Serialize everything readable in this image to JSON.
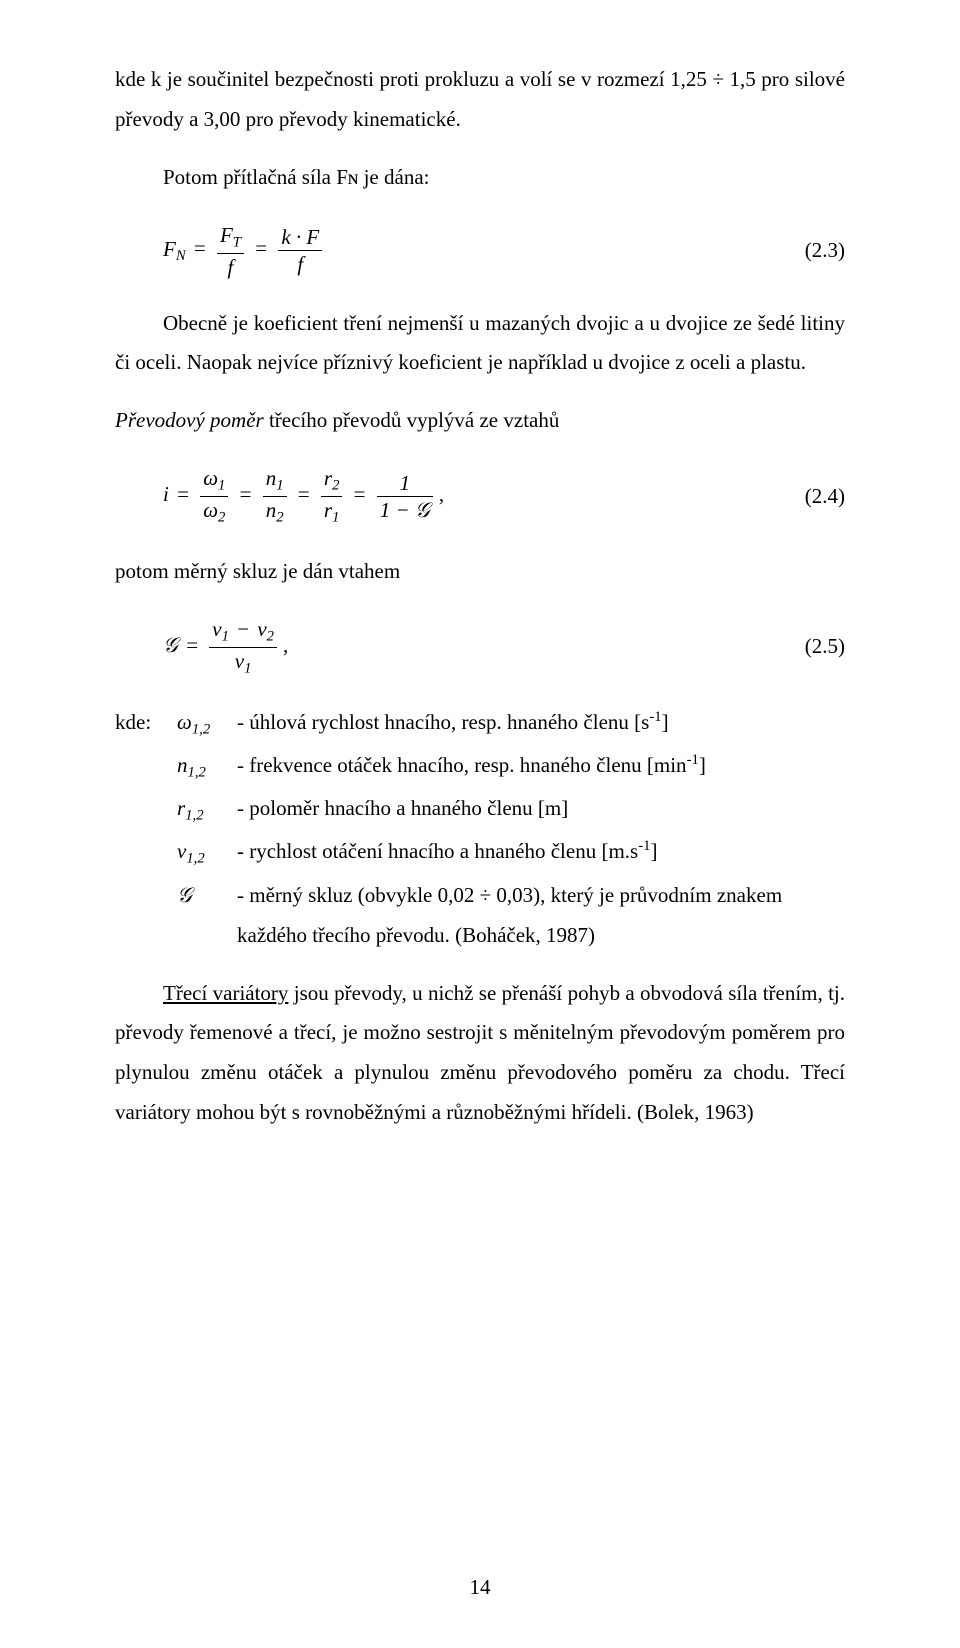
{
  "p1": "kde k je součinitel bezpečnosti proti prokluzu a volí se v rozmezí 1,25 ÷ 1,5 pro silové převody a 3,00 pro převody kinematické.",
  "p2": "Potom přítlačná síla Fɴ je dána:",
  "eq1_lhs": "F",
  "eq1_lhs_sub": "N",
  "eq1_f1_top_sym": "F",
  "eq1_f1_top_sub": "T",
  "eq1_f1_bot": "f",
  "eq1_f2_top": "k · F",
  "eq1_f2_bot": "f",
  "eq1_num": "(2.3)",
  "p3": "Obecně je koeficient tření nejmenší u mazaných dvojic a u dvojice ze šedé litiny či oceli. Naopak nejvíce příznivý koeficient je například u dvojice z oceli a plastu.",
  "p4_pre": "Převodový poměr",
  "p4_rest": " třecího převodů vyplývá ze vztahů",
  "eq2_lhs": "i",
  "eq2_f1_top": "ω",
  "eq2_f1_top_sub": "1",
  "eq2_f1_bot": "ω",
  "eq2_f1_bot_sub": "2",
  "eq2_f2_top": "n",
  "eq2_f2_top_sub": "1",
  "eq2_f2_bot": "n",
  "eq2_f2_bot_sub": "2",
  "eq2_f3_top": "r",
  "eq2_f3_top_sub": "2",
  "eq2_f3_bot": "r",
  "eq2_f3_bot_sub": "1",
  "eq2_f4_top": "1",
  "eq2_f4_bot": "1 − 𝒢",
  "eq2_tail": ",",
  "eq2_num": "(2.4)",
  "p5": "potom měrný skluz je dán vtahem",
  "eq3_lhs": "𝒢",
  "eq3_top_a": "v",
  "eq3_top_a_sub": "1",
  "eq3_top_minus": "−",
  "eq3_top_b": "v",
  "eq3_top_b_sub": "2",
  "eq3_bot": "v",
  "eq3_bot_sub": "1",
  "eq3_tail": ",",
  "eq3_num": "(2.5)",
  "def_key": "kde:",
  "def1_sym": "ω",
  "def1_sub": "1,2",
  "def1_txt_a": "- úhlová rychlost hnacího, resp. hnaného členu [s",
  "def1_exp": "-1",
  "def1_txt_b": "]",
  "def2_sym": "n",
  "def2_sub": "1,2",
  "def2_txt_a": "- frekvence otáček hnacího, resp. hnaného členu [min",
  "def2_exp": "-1",
  "def2_txt_b": "]",
  "def3_sym": "r",
  "def3_sub": "1,2",
  "def3_txt": "- poloměr hnacího a hnaného členu [m]",
  "def4_sym": "v",
  "def4_sub": "1,2",
  "def4_txt_a": "- rychlost otáčení hnacího a hnaného členu [m.s",
  "def4_exp": "-1",
  "def4_txt_b": "]",
  "def5_sym": "𝒢",
  "def5_txt": "- měrný skluz (obvykle 0,02 ÷ 0,03), který je průvodním znakem každého třecího převodu. (Boháček, 1987)",
  "p6_under": "Třecí variátory",
  "p6_rest": " jsou převody, u nichž se přenáší pohyb a obvodová síla třením, tj. převody řemenové a třecí, je možno sestrojit s měnitelným převodovým poměrem pro plynulou změnu otáček a plynulou změnu převodového poměru za chodu. Třecí variátory mohou být s rovnoběžnými a různoběžnými hřídeli. (Bolek, 1963)",
  "page_number": "14"
}
